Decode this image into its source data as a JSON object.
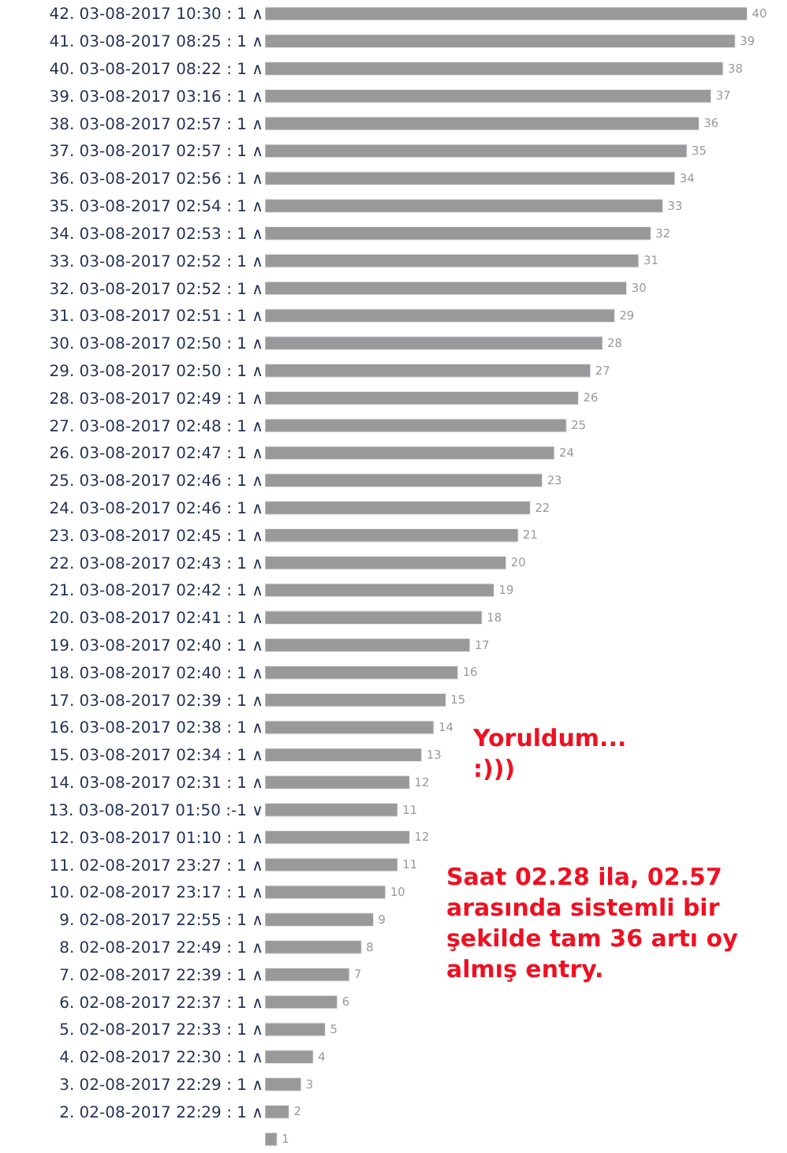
{
  "chart_data": {
    "type": "bar",
    "orientation": "horizontal",
    "data_labels": true,
    "xlim": [
      0,
      43.3
    ],
    "categories": [
      "42. 03-08-2017 10:30 : 1 ∧",
      "41. 03-08-2017 08:25 : 1 ∧",
      "40. 03-08-2017 08:22 : 1 ∧",
      "39. 03-08-2017 03:16 : 1 ∧",
      "38. 03-08-2017 02:57 : 1 ∧",
      "37. 03-08-2017 02:57 : 1 ∧",
      "36. 03-08-2017 02:56 : 1 ∧",
      "35. 03-08-2017 02:54 : 1 ∧",
      "34. 03-08-2017 02:53 : 1 ∧",
      "33. 03-08-2017 02:52 : 1 ∧",
      "32. 03-08-2017 02:52 : 1 ∧",
      "31. 03-08-2017 02:51 : 1 ∧",
      "30. 03-08-2017 02:50 : 1 ∧",
      "29. 03-08-2017 02:50 : 1 ∧",
      "28. 03-08-2017 02:49 : 1 ∧",
      "27. 03-08-2017 02:48 : 1 ∧",
      "26. 03-08-2017 02:47 : 1 ∧",
      "25. 03-08-2017 02:46 : 1 ∧",
      "24. 03-08-2017 02:46 : 1 ∧",
      "23. 03-08-2017 02:45 : 1 ∧",
      "22. 03-08-2017 02:43 : 1 ∧",
      "21. 03-08-2017 02:42 : 1 ∧",
      "20. 03-08-2017 02:41 : 1 ∧",
      "19. 03-08-2017 02:40 : 1 ∧",
      "18. 03-08-2017 02:40 : 1 ∧",
      "17. 03-08-2017 02:39 : 1 ∧",
      "16. 03-08-2017 02:38 : 1 ∧",
      "15. 03-08-2017 02:34 : 1 ∧",
      "14. 03-08-2017 02:31 : 1 ∧",
      "13. 03-08-2017 01:50 :-1 ∨",
      "12. 03-08-2017 01:10 : 1 ∧",
      "11. 02-08-2017 23:27 : 1 ∧",
      "10. 02-08-2017 23:17 : 1 ∧",
      "9. 02-08-2017 22:55 : 1 ∧",
      "8. 02-08-2017 22:49 : 1 ∧",
      "7. 02-08-2017 22:39 : 1 ∧",
      "6. 02-08-2017 22:37 : 1 ∧",
      "5. 02-08-2017 22:33 : 1 ∧",
      "4. 02-08-2017 22:30 : 1 ∧",
      "3. 02-08-2017 22:29 : 1 ∧",
      "2. 02-08-2017 22:29 : 1 ∧",
      null
    ],
    "values": [
      40,
      39,
      38,
      37,
      36,
      35,
      34,
      33,
      32,
      31,
      30,
      29,
      28,
      27,
      26,
      25,
      24,
      23,
      22,
      21,
      20,
      19,
      18,
      17,
      16,
      15,
      14,
      13,
      12,
      11,
      12,
      11,
      10,
      9,
      8,
      7,
      6,
      5,
      4,
      3,
      2,
      1
    ],
    "color": "#999999",
    "annotations": [
      "Yoruldum...\n:)))",
      "Saat 02.28 ila, 02.57\narasında sistemli bir\nşekilde tam 36 artı oy\nalmış entry."
    ]
  }
}
